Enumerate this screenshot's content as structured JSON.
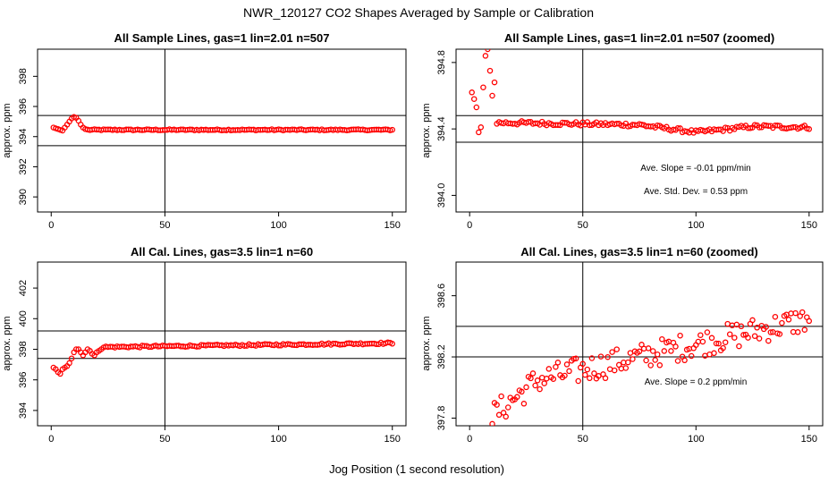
{
  "figure": {
    "title": "NWR_120127  CO2 Shapes Averaged by Sample or Calibration",
    "xlabel": "Jog Position (1 second resolution)"
  },
  "colors": {
    "points": "#ff0000",
    "axes": "#000000",
    "background": "#ffffff"
  },
  "chart_data": [
    {
      "type": "scatter",
      "title": "All Sample Lines, gas=1 lin=2.01 n=507",
      "ylabel": "approx. ppm",
      "xlim": [
        -6,
        156
      ],
      "ylim": [
        389,
        399.8
      ],
      "xticks": [
        0,
        50,
        100,
        150
      ],
      "yticks": [
        390,
        392,
        394,
        396,
        398
      ],
      "vline": 50,
      "hlines": [
        395.4,
        393.4
      ],
      "annotations": [],
      "series": [
        {
          "kind": "sample_full",
          "x_start": 1,
          "x_end": 150,
          "values_head": [
            394.6,
            394.55,
            394.5,
            394.45,
            394.4,
            394.6,
            394.8,
            395.0,
            395.2,
            395.3,
            395.25,
            395.05,
            394.8,
            394.6,
            394.5
          ],
          "plateau": 394.45,
          "noise": 0.04
        }
      ]
    },
    {
      "type": "scatter",
      "title": "All Sample Lines, gas=1 lin=2.01 n=507 (zoomed)",
      "ylabel": "approx. ppm",
      "xlim": [
        -6,
        156
      ],
      "ylim": [
        393.9,
        394.88
      ],
      "xticks": [
        0,
        50,
        100,
        150
      ],
      "yticks": [
        394.0,
        394.4,
        394.8
      ],
      "vline": 50,
      "hlines": [
        394.48,
        394.32
      ],
      "annotations": [
        "Ave. Slope =  -0.01  ppm/min",
        "Ave. Std. Dev. =  0.53  ppm"
      ],
      "series": [
        {
          "kind": "sample_zoom",
          "x_start": 1,
          "x_end": 150,
          "values_head": [
            394.62,
            394.58,
            394.53,
            394.38,
            394.41,
            394.65,
            394.84,
            394.88,
            394.75,
            394.6,
            394.68
          ],
          "start_level": 394.44,
          "end_level": 394.41,
          "dip_center": 100,
          "dip_depth": 0.04,
          "noise": 0.012
        }
      ]
    },
    {
      "type": "scatter",
      "title": "All Cal. Lines, gas=3.5 lin=1 n=60",
      "ylabel": "approx. ppm",
      "xlim": [
        -6,
        156
      ],
      "ylim": [
        393,
        403.7
      ],
      "xticks": [
        0,
        50,
        100,
        150
      ],
      "yticks": [
        394,
        396,
        398,
        400,
        402
      ],
      "vline": 50,
      "hlines": [
        399.2,
        397.4
      ],
      "annotations": [],
      "series": [
        {
          "kind": "cal_full",
          "x_start": 1,
          "x_end": 150,
          "values_head": [
            396.8,
            396.7,
            396.5,
            396.4,
            396.7,
            396.8,
            396.9,
            397.1,
            397.4,
            397.8,
            398.0,
            398.0,
            397.8,
            397.6,
            397.8,
            398.0,
            397.9,
            397.7,
            397.6,
            397.8,
            397.9,
            398.0
          ],
          "start_level": 398.1,
          "end_level": 398.4,
          "noise": 0.06
        }
      ]
    },
    {
      "type": "scatter",
      "title": "All Cal. Lines, gas=3.5 lin=1 n=60 (zoomed)",
      "ylabel": "approx. ppm",
      "xlim": [
        -6,
        156
      ],
      "ylim": [
        397.75,
        398.82
      ],
      "xticks": [
        0,
        50,
        100,
        150
      ],
      "yticks": [
        397.8,
        398.2,
        398.6
      ],
      "vline": 50,
      "hlines": [
        398.4,
        398.2
      ],
      "annotations": [
        "Ave. Slope =  0.2  ppm/min"
      ],
      "series": [
        {
          "kind": "cal_zoom",
          "x_start": 9,
          "x_end": 150,
          "start_level": 397.98,
          "end_level": 398.45,
          "curve_knee": 30,
          "noise": 0.09
        }
      ]
    }
  ]
}
